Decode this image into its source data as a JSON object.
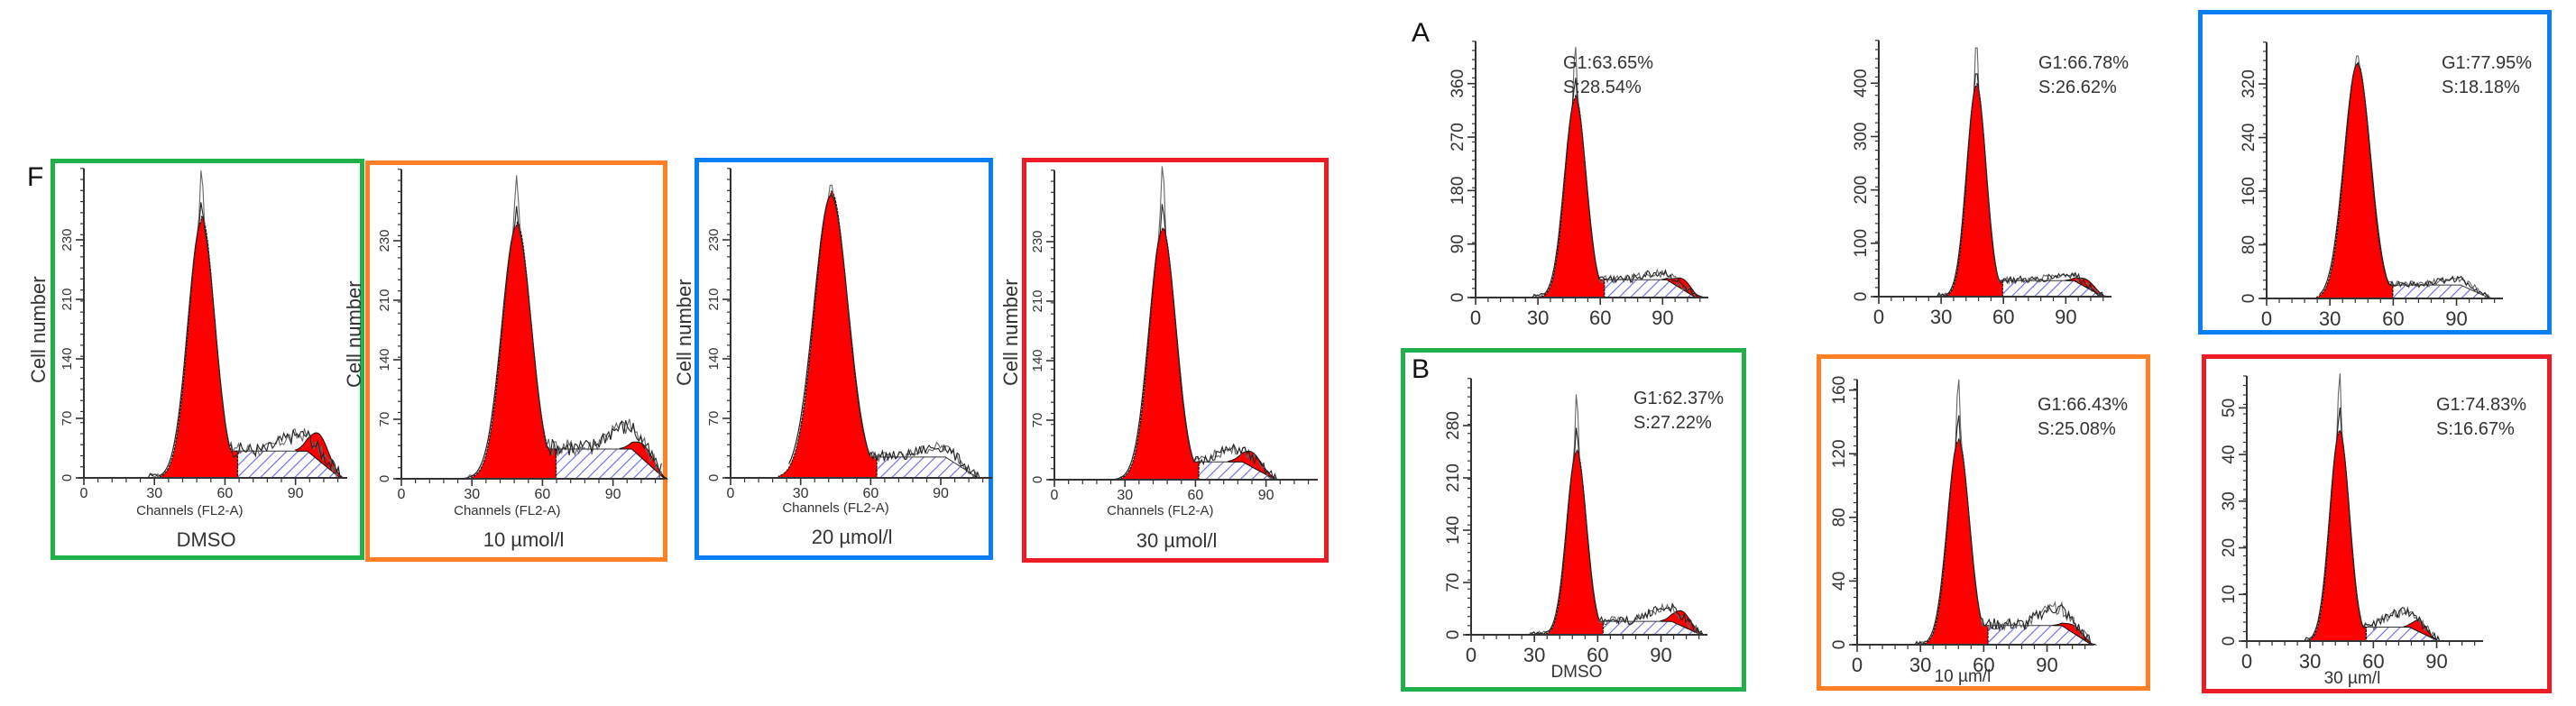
{
  "figure": {
    "panel_f_letter": "F",
    "panel_a_letter": "A",
    "panel_b_letter": "B",
    "colors": {
      "green": "#21b14b",
      "orange": "#ff7f27",
      "blue": "#0a7ff5",
      "red": "#ed1c24",
      "g1_fill": "#ff0000",
      "s_hatch": "#6666ee",
      "axis": "#333333",
      "outline": "#555555"
    }
  },
  "chart_data": [
    {
      "id": "F-DMSO",
      "group": "F",
      "type": "area",
      "title": "DMSO",
      "xlabel": "Channels (FL2-A)",
      "ylabel": "Cell number",
      "frame_color": "green",
      "xlim": [
        0,
        112
      ],
      "xticks": [
        0,
        30,
        60,
        90
      ],
      "yticks": [
        0,
        70,
        140,
        210,
        230
      ],
      "ytick_labels": [
        "0",
        "70",
        "140",
        "210",
        "230"
      ],
      "ylim_fraction_top": 1.12,
      "g1_peak": {
        "center": 50,
        "height_frac": 0.86,
        "width": 5.5
      },
      "raw_peak_frac": 1.04,
      "s_phase": {
        "start": 41,
        "plateau_start": 56,
        "end": 103,
        "height_frac": 0.09
      },
      "g2_peak": {
        "center": 100,
        "height_frac": 0.09,
        "width": 4
      },
      "noise_frac": 0.14
    },
    {
      "id": "F-10",
      "group": "F",
      "type": "area",
      "title": "10 µmol/l",
      "xlabel": "Channels (FL2-A)",
      "ylabel": "Cell number",
      "frame_color": "orange",
      "xlim": [
        0,
        112
      ],
      "xticks": [
        0,
        30,
        60,
        90
      ],
      "yticks": [
        0,
        70,
        140,
        210,
        230
      ],
      "ytick_labels": [
        "0",
        "70",
        "140",
        "210",
        "230"
      ],
      "ylim_fraction_top": 1.12,
      "g1_peak": {
        "center": 49,
        "height_frac": 0.85,
        "width": 6
      },
      "raw_peak_frac": 1.02,
      "s_phase": {
        "start": 42,
        "plateau_start": 58,
        "end": 106,
        "height_frac": 0.1
      },
      "g2_peak": {
        "center": 103,
        "height_frac": 0.05,
        "width": 4
      },
      "noise_frac": 0.17
    },
    {
      "id": "F-20",
      "group": "F",
      "type": "area",
      "title": "20 µmol/l",
      "xlabel": "Channels (FL2-A)",
      "ylabel": "Cell number",
      "frame_color": "blue",
      "xlim": [
        0,
        112
      ],
      "xticks": [
        0,
        30,
        60,
        90
      ],
      "yticks": [
        0,
        70,
        140,
        210,
        230
      ],
      "ytick_labels": [
        "0",
        "70",
        "140",
        "210",
        "230"
      ],
      "ylim_fraction_top": 1.12,
      "g1_peak": {
        "center": 43,
        "height_frac": 0.95,
        "width": 7
      },
      "raw_peak_frac": 1.0,
      "s_phase": {
        "start": 33,
        "plateau_start": 50,
        "end": 100,
        "height_frac": 0.07
      },
      "g2_peak": {
        "center": 101,
        "height_frac": 0.0,
        "width": 3
      },
      "noise_frac": 0.1
    },
    {
      "id": "F-30",
      "group": "F",
      "type": "area",
      "title": "30 µmol/l",
      "xlabel": "Channels (FL2-A)",
      "ylabel": "Cell number",
      "frame_color": "red",
      "xlim": [
        0,
        112
      ],
      "xticks": [
        0,
        30,
        60,
        90
      ],
      "yticks": [
        0,
        70,
        140,
        210,
        230
      ],
      "ytick_labels": [
        "0",
        "70",
        "140",
        "210",
        "230"
      ],
      "ylim_fraction_top": 1.12,
      "g1_peak": {
        "center": 46,
        "height_frac": 0.84,
        "width": 5.5
      },
      "raw_peak_frac": 1.06,
      "s_phase": {
        "start": 40,
        "plateau_start": 56,
        "end": 88,
        "height_frac": 0.06
      },
      "g2_peak": {
        "center": 84,
        "height_frac": 0.05,
        "width": 4
      },
      "noise_frac": 0.1
    },
    {
      "id": "A-DMSO",
      "group": "A",
      "type": "area",
      "title": "",
      "xlabel": "",
      "ylabel": "",
      "frame_color": null,
      "annotation": [
        "G1:63.65%",
        "S:28.54%"
      ],
      "xlim": [
        0,
        112
      ],
      "xticks": [
        0,
        30,
        60,
        90
      ],
      "yticks": [
        0,
        90,
        180,
        270,
        360
      ],
      "ytick_labels": [
        "0",
        "90",
        "180",
        "270",
        "360"
      ],
      "ylim": [
        0,
        440
      ],
      "g1_peak_value": 335,
      "g1_center": 48,
      "g1_width": 5,
      "raw_peak_value": 425,
      "s_phase": {
        "start": 38,
        "plateau_start": 56,
        "end": 100,
        "value": 30
      },
      "g2_peak": {
        "center": 100,
        "value": 18,
        "width": 4
      },
      "noise_value": 40
    },
    {
      "id": "A-10",
      "group": "A",
      "type": "area",
      "title": "",
      "xlabel": "",
      "ylabel": "",
      "frame_color": null,
      "annotation": [
        "G1:66.78%",
        "S:26.62%"
      ],
      "xlim": [
        0,
        112
      ],
      "xticks": [
        0,
        30,
        60,
        90
      ],
      "yticks": [
        0,
        100,
        200,
        300,
        400
      ],
      "ytick_labels": [
        "0",
        "100",
        "200",
        "300",
        "400"
      ],
      "ylim": [
        0,
        490
      ],
      "g1_peak_value": 395,
      "g1_center": 47,
      "g1_width": 4.5,
      "raw_peak_value": 485,
      "s_phase": {
        "start": 40,
        "plateau_start": 55,
        "end": 102,
        "value": 30
      },
      "g2_peak": {
        "center": 100,
        "value": 15,
        "width": 4
      },
      "noise_value": 40
    },
    {
      "id": "A-20",
      "group": "A",
      "type": "area",
      "title": "",
      "xlabel": "",
      "ylabel": "",
      "frame_color": "blue",
      "annotation": [
        "G1:77.95%",
        "S:18.18%"
      ],
      "xlim": [
        0,
        112
      ],
      "xticks": [
        0,
        30,
        60,
        90
      ],
      "yticks": [
        0,
        80,
        160,
        240,
        320
      ],
      "ytick_labels": [
        "0",
        "80",
        "160",
        "240",
        "320"
      ],
      "ylim": [
        0,
        390
      ],
      "g1_peak_value": 350,
      "g1_center": 43,
      "g1_width": 6,
      "raw_peak_value": 370,
      "s_phase": {
        "start": 37,
        "plateau_start": 53,
        "end": 100,
        "value": 20
      },
      "g2_peak": {
        "center": 100,
        "value": 0,
        "width": 3
      },
      "noise_value": 28
    },
    {
      "id": "B-DMSO",
      "group": "B",
      "type": "area",
      "title": "DMSO",
      "xlabel": "",
      "ylabel": "",
      "frame_color": "green",
      "annotation": [
        "G1:62.37%",
        "S:27.22%"
      ],
      "xlim": [
        0,
        112
      ],
      "xticks": [
        0,
        30,
        60,
        90
      ],
      "yticks": [
        0,
        70,
        140,
        210,
        280
      ],
      "ytick_labels": [
        "0",
        "70",
        "140",
        "210",
        "280"
      ],
      "ylim": [
        0,
        350
      ],
      "g1_peak_value": 245,
      "g1_center": 50,
      "g1_width": 4.5,
      "raw_peak_value": 325,
      "s_phase": {
        "start": 44,
        "plateau_start": 57,
        "end": 103,
        "value": 18
      },
      "g2_peak": {
        "center": 100,
        "value": 20,
        "width": 4
      },
      "noise_value": 35
    },
    {
      "id": "B-10",
      "group": "B",
      "type": "area",
      "title": "10 µm/l",
      "xlabel": "",
      "ylabel": "",
      "frame_color": "orange",
      "annotation": [
        "G1:66.43%",
        "S:25.08%"
      ],
      "xlim": [
        0,
        112
      ],
      "xticks": [
        0,
        30,
        60,
        90
      ],
      "yticks": [
        0,
        40,
        80,
        120,
        160
      ],
      "ytick_labels": [
        "0",
        "40",
        "80",
        "120",
        "160"
      ],
      "ylim": [
        0,
        170
      ],
      "g1_peak_value": 128,
      "g1_center": 48,
      "g1_width": 5,
      "raw_peak_value": 168,
      "s_phase": {
        "start": 42,
        "plateau_start": 57,
        "end": 105,
        "value": 12
      },
      "g2_peak": {
        "center": 103,
        "value": 5,
        "width": 4
      },
      "noise_value": 22
    },
    {
      "id": "B-30",
      "group": "B",
      "type": "area",
      "title": "30 µm/l",
      "xlabel": "",
      "ylabel": "",
      "frame_color": "red",
      "annotation": [
        "G1:74.83%",
        "S:16.67%"
      ],
      "xlim": [
        0,
        112
      ],
      "xticks": [
        0,
        30,
        60,
        90
      ],
      "yticks": [
        0,
        10,
        20,
        30,
        40,
        50
      ],
      "ytick_labels": [
        "0",
        "10",
        "20",
        "30",
        "40",
        "50"
      ],
      "ylim": [
        0,
        58
      ],
      "g1_peak_value": 45,
      "g1_center": 44,
      "g1_width": 4.5,
      "raw_peak_value": 58,
      "s_phase": {
        "start": 41,
        "plateau_start": 53,
        "end": 85,
        "value": 3
      },
      "g2_peak": {
        "center": 82,
        "value": 2.5,
        "width": 3
      },
      "noise_value": 6
    }
  ]
}
